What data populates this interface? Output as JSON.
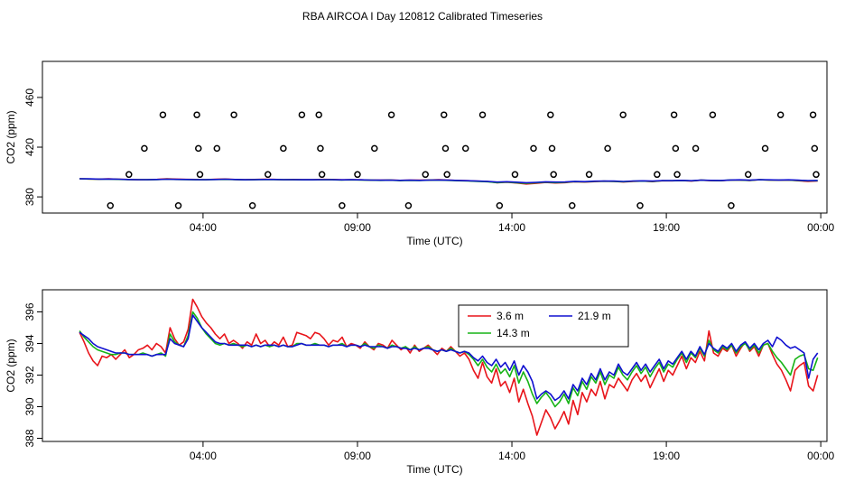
{
  "title": "RBA AIRCOA I  Day 120812  Calibrated Timeseries",
  "chart_data": [
    {
      "type": "scatter",
      "xlabel": "Time (UTC)",
      "ylabel": "CO2 (ppm)",
      "xlim": [
        -1.2,
        24.2
      ],
      "ylim": [
        367,
        489
      ],
      "xticks": [
        4,
        9,
        14,
        19,
        24
      ],
      "xtick_labels": [
        "04:00",
        "09:00",
        "14:00",
        "19:00",
        "00:00"
      ],
      "yticks": [
        380,
        420,
        460
      ],
      "points_x": [
        1.0,
        1.6,
        2.1,
        2.7,
        3.2,
        3.8,
        3.85,
        3.9,
        4.45,
        5.0,
        5.6,
        6.1,
        6.6,
        7.2,
        7.75,
        7.8,
        7.85,
        8.5,
        9.0,
        9.55,
        10.1,
        10.65,
        11.2,
        11.8,
        11.85,
        11.9,
        12.5,
        13.05,
        13.6,
        14.1,
        14.7,
        15.25,
        15.3,
        15.35,
        15.95,
        16.5,
        17.1,
        17.6,
        18.15,
        18.7,
        19.25,
        19.3,
        19.35,
        19.95,
        20.5,
        21.1,
        21.65,
        22.2,
        22.7,
        23.75,
        23.8,
        23.85
      ],
      "points_y": [
        373,
        398,
        419,
        446,
        373,
        446,
        419,
        398,
        419,
        446,
        373,
        398,
        419,
        446,
        446,
        419,
        398,
        373,
        398,
        419,
        446,
        373,
        398,
        446,
        419,
        398,
        419,
        446,
        373,
        398,
        419,
        446,
        419,
        398,
        373,
        398,
        419,
        446,
        373,
        398,
        446,
        419,
        398,
        419,
        446,
        373,
        398,
        419,
        446,
        446,
        419,
        398
      ],
      "series": [
        {
          "color": "#e8141a",
          "values": [
            394.6,
            394.4,
            394.3,
            394.5,
            394.2,
            394.0,
            393.8,
            393.9,
            394.1,
            394.5,
            394.3,
            394.1,
            394.0,
            393.9,
            394.2,
            394.4,
            394.0,
            393.8,
            394.0,
            394.2,
            394.1,
            393.9,
            394.0,
            393.8,
            393.9,
            394.1,
            394.0,
            393.7,
            393.9,
            393.7,
            393.5,
            393.4,
            393.6,
            393.3,
            393.5,
            393.4,
            393.6,
            393.8,
            393.5,
            393.2,
            393.0,
            392.6,
            392.4,
            391.4,
            391.8,
            391.2,
            390.4,
            390.9,
            391.6,
            391.2,
            391.5,
            392.2,
            391.9,
            392.3,
            392.6,
            392.4,
            392.0,
            392.5,
            392.7,
            392.3,
            393.0,
            392.9,
            393.2,
            392.7,
            393.4,
            393.1,
            393.0,
            393.5,
            393.6,
            393.2,
            393.8,
            393.5,
            393.4,
            393.6,
            393.0,
            392.5,
            392.8
          ]
        },
        {
          "color": "#16b316",
          "values": [
            394.6,
            394.4,
            394.2,
            394.3,
            394.1,
            393.9,
            393.9,
            393.8,
            393.9,
            394.2,
            394.0,
            393.9,
            393.8,
            393.8,
            394.0,
            394.1,
            393.9,
            393.7,
            393.8,
            394.0,
            393.9,
            393.8,
            393.8,
            393.7,
            393.7,
            393.9,
            393.8,
            393.6,
            393.7,
            393.6,
            393.4,
            393.3,
            393.4,
            393.1,
            393.3,
            393.2,
            393.4,
            393.5,
            393.3,
            393.0,
            392.8,
            392.5,
            392.2,
            391.5,
            391.9,
            391.4,
            390.9,
            391.3,
            391.8,
            391.5,
            391.7,
            392.3,
            392.1,
            392.4,
            392.6,
            392.5,
            392.2,
            392.6,
            392.7,
            392.5,
            393.0,
            393.0,
            393.2,
            392.9,
            393.4,
            393.2,
            393.1,
            393.6,
            393.6,
            393.3,
            393.8,
            393.6,
            393.5,
            393.6,
            393.2,
            392.9,
            393.0
          ]
        },
        {
          "color": "#1010d0",
          "values": [
            394.6,
            394.5,
            394.3,
            394.4,
            394.2,
            394.0,
            393.9,
            393.9,
            394.0,
            394.2,
            394.1,
            394.0,
            393.9,
            393.9,
            394.0,
            394.2,
            394.0,
            393.8,
            393.9,
            394.0,
            394.0,
            393.9,
            393.9,
            393.8,
            393.8,
            393.9,
            393.9,
            393.7,
            393.8,
            393.7,
            393.5,
            393.4,
            393.5,
            393.3,
            393.4,
            393.3,
            393.5,
            393.6,
            393.4,
            393.2,
            393.0,
            392.7,
            392.5,
            391.9,
            392.2,
            391.8,
            391.4,
            391.7,
            392.1,
            391.9,
            392.0,
            392.5,
            392.3,
            392.6,
            392.8,
            392.7,
            392.4,
            392.8,
            392.9,
            392.7,
            393.1,
            393.1,
            393.3,
            393.0,
            393.5,
            393.3,
            393.2,
            393.6,
            393.7,
            393.4,
            393.9,
            393.7,
            393.6,
            393.7,
            393.4,
            393.1,
            393.2
          ]
        }
      ]
    },
    {
      "type": "line",
      "xlabel": "Time (UTC)",
      "ylabel": "CO2 (ppm)",
      "xlim": [
        -1.2,
        24.2
      ],
      "ylim": [
        387.8,
        397.4
      ],
      "xticks": [
        4,
        9,
        14,
        19,
        24
      ],
      "xtick_labels": [
        "04:00",
        "09:00",
        "14:00",
        "19:00",
        "00:00"
      ],
      "yticks": [
        388,
        390,
        392,
        394,
        396
      ],
      "legend": {
        "position": "top-center",
        "items": [
          {
            "label": "3.6 m",
            "color": "#e8141a"
          },
          {
            "label": "21.9 m",
            "color": "#1010d0"
          },
          {
            "label": "14.3 m",
            "color": "#16b316"
          }
        ]
      },
      "series": [
        {
          "name": "3.6 m",
          "color": "#e8141a",
          "values": [
            394.7,
            394.1,
            393.4,
            392.9,
            392.6,
            393.2,
            393.1,
            393.3,
            393.0,
            393.3,
            393.6,
            393.1,
            393.3,
            393.6,
            393.7,
            393.9,
            393.6,
            394.0,
            393.8,
            393.4,
            395.0,
            394.3,
            393.9,
            394.1,
            394.9,
            396.8,
            396.3,
            395.7,
            395.3,
            395.0,
            394.6,
            394.3,
            394.6,
            394.0,
            394.2,
            394.0,
            393.7,
            394.1,
            393.9,
            394.6,
            394.0,
            394.2,
            393.8,
            394.1,
            393.9,
            394.4,
            393.8,
            393.9,
            394.7,
            394.6,
            394.5,
            394.3,
            394.7,
            394.6,
            394.3,
            393.9,
            394.2,
            394.1,
            394.4,
            393.8,
            394.0,
            393.9,
            393.7,
            394.1,
            393.8,
            393.6,
            394.0,
            393.9,
            393.7,
            394.2,
            393.9,
            393.6,
            393.8,
            393.4,
            393.9,
            393.5,
            393.7,
            393.9,
            393.6,
            393.3,
            393.7,
            393.5,
            393.8,
            393.5,
            393.2,
            393.4,
            393.0,
            392.3,
            391.8,
            392.8,
            391.9,
            391.5,
            392.4,
            391.3,
            391.6,
            390.9,
            391.8,
            390.3,
            391.1,
            390.2,
            389.4,
            388.2,
            389.0,
            389.8,
            389.3,
            388.6,
            389.1,
            389.7,
            388.9,
            390.4,
            389.5,
            390.9,
            390.3,
            391.1,
            390.7,
            391.6,
            390.5,
            391.4,
            391.2,
            391.8,
            391.4,
            391.0,
            391.7,
            392.1,
            391.6,
            392.0,
            391.2,
            391.8,
            392.4,
            391.6,
            392.3,
            392.0,
            392.6,
            393.2,
            392.4,
            393.1,
            392.8,
            393.5,
            392.9,
            394.8,
            393.4,
            393.2,
            393.7,
            393.5,
            393.9,
            393.2,
            393.7,
            394.1,
            393.5,
            393.8,
            393.2,
            393.9,
            394.0,
            393.3,
            392.7,
            392.3,
            391.7,
            391.0,
            392.3,
            392.6,
            392.8,
            391.3,
            391.0,
            392.0
          ]
        },
        {
          "name": "14.3 m",
          "color": "#16b316",
          "values": [
            394.8,
            394.4,
            394.1,
            393.8,
            393.6,
            393.5,
            393.4,
            393.3,
            393.3,
            393.4,
            393.4,
            393.3,
            393.3,
            393.3,
            393.4,
            393.3,
            393.2,
            393.3,
            393.4,
            393.2,
            394.6,
            394.1,
            393.9,
            393.8,
            394.5,
            396.0,
            395.6,
            395.0,
            394.6,
            394.3,
            394.0,
            393.9,
            394.0,
            393.9,
            394.0,
            393.9,
            393.8,
            393.9,
            393.8,
            393.9,
            393.8,
            393.9,
            393.8,
            393.9,
            393.8,
            393.9,
            393.8,
            393.8,
            394.0,
            394.0,
            393.9,
            393.9,
            394.0,
            393.9,
            393.9,
            393.8,
            393.9,
            393.9,
            394.0,
            393.8,
            393.9,
            393.9,
            393.8,
            394.0,
            393.8,
            393.7,
            393.9,
            393.8,
            393.7,
            393.9,
            393.8,
            393.7,
            393.8,
            393.6,
            393.8,
            393.6,
            393.7,
            393.8,
            393.6,
            393.5,
            393.6,
            393.5,
            393.7,
            393.5,
            393.4,
            393.5,
            393.3,
            393.0,
            392.6,
            393.0,
            392.5,
            392.2,
            392.7,
            392.1,
            392.4,
            391.9,
            392.6,
            391.5,
            392.2,
            391.6,
            390.8,
            390.2,
            390.6,
            390.9,
            390.5,
            390.0,
            390.3,
            390.8,
            390.2,
            391.2,
            390.7,
            391.6,
            391.1,
            391.9,
            391.5,
            392.2,
            391.4,
            392.0,
            391.8,
            392.5,
            392.0,
            391.7,
            392.2,
            392.6,
            392.1,
            392.5,
            391.9,
            392.4,
            392.8,
            392.2,
            392.7,
            392.5,
            393.0,
            393.4,
            392.8,
            393.4,
            393.1,
            393.7,
            393.2,
            394.2,
            393.6,
            393.4,
            393.8,
            393.6,
            393.9,
            393.4,
            393.8,
            394.0,
            393.6,
            393.9,
            393.4,
            393.9,
            394.0,
            393.5,
            393.1,
            392.8,
            392.4,
            392.0,
            393.0,
            393.2,
            393.3,
            392.4,
            392.3,
            393.1
          ]
        },
        {
          "name": "21.9 m",
          "color": "#1010d0",
          "values": [
            394.7,
            394.5,
            394.3,
            394.0,
            393.8,
            393.7,
            393.6,
            393.5,
            393.4,
            393.4,
            393.4,
            393.3,
            393.3,
            393.3,
            393.3,
            393.3,
            393.2,
            393.3,
            393.3,
            393.3,
            394.3,
            394.0,
            393.9,
            393.8,
            394.3,
            395.8,
            395.4,
            395.0,
            394.7,
            394.4,
            394.1,
            394.0,
            394.0,
            393.9,
            393.9,
            393.9,
            393.9,
            393.9,
            393.8,
            393.9,
            393.8,
            393.9,
            393.9,
            393.9,
            393.8,
            393.9,
            393.8,
            393.8,
            393.9,
            394.0,
            393.9,
            393.9,
            393.9,
            393.9,
            393.9,
            393.8,
            393.9,
            393.9,
            393.9,
            393.8,
            393.9,
            393.9,
            393.8,
            393.9,
            393.8,
            393.8,
            393.8,
            393.8,
            393.7,
            393.8,
            393.8,
            393.7,
            393.7,
            393.6,
            393.7,
            393.6,
            393.7,
            393.7,
            393.6,
            393.5,
            393.6,
            393.5,
            393.6,
            393.5,
            393.4,
            393.5,
            393.4,
            393.1,
            392.9,
            393.2,
            392.8,
            392.6,
            393.0,
            392.5,
            392.8,
            392.3,
            392.9,
            392.0,
            392.6,
            392.2,
            391.6,
            390.5,
            390.8,
            391.0,
            390.8,
            390.4,
            390.6,
            391.0,
            390.5,
            391.4,
            391.0,
            391.8,
            391.4,
            392.1,
            391.7,
            392.4,
            391.7,
            392.2,
            392.0,
            392.7,
            392.2,
            392.0,
            392.4,
            392.8,
            392.3,
            392.7,
            392.2,
            392.6,
            393.0,
            392.4,
            392.9,
            392.7,
            393.1,
            393.5,
            393.0,
            393.5,
            393.2,
            393.8,
            393.3,
            394.0,
            393.7,
            393.5,
            393.9,
            393.7,
            394.0,
            393.5,
            393.9,
            394.1,
            393.7,
            394.0,
            393.6,
            394.0,
            394.2,
            393.8,
            394.4,
            394.2,
            393.9,
            393.7,
            393.8,
            393.6,
            393.4,
            391.8,
            393.0,
            393.4
          ]
        }
      ]
    }
  ]
}
